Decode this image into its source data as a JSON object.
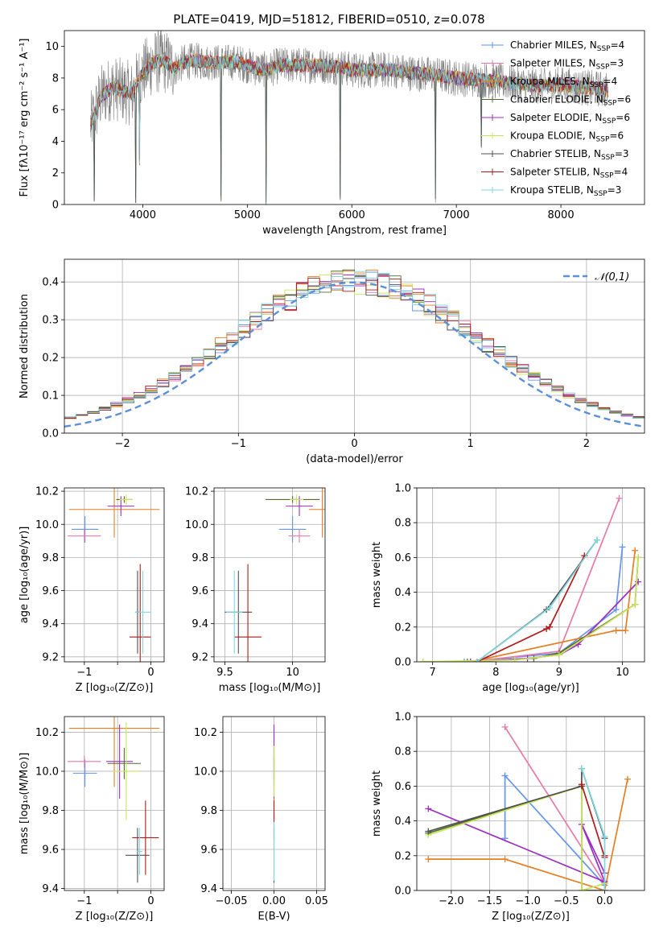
{
  "chart_data": [
    {
      "id": "spectrum",
      "type": "line",
      "title": "PLATE=0419, MJD=51812, FIBERID=0510, z=0.078",
      "xlabel": "wavelength [Angstrom, rest frame]",
      "ylabel": "Flux [fλ10⁻¹⁷ erg cm⁻² s⁻¹ A⁻¹]",
      "xlim": [
        3250,
        8800
      ],
      "ylim": [
        0,
        11
      ],
      "xticks": [
        4000,
        5000,
        6000,
        7000,
        8000
      ],
      "yticks": [
        0,
        2,
        4,
        6,
        8,
        10
      ],
      "grid": false,
      "legend_position": "right",
      "observed_color": "#808080",
      "observed_profile": [
        [
          3500,
          5.0
        ],
        [
          3600,
          6.8
        ],
        [
          3700,
          7.4
        ],
        [
          3800,
          7.2
        ],
        [
          3900,
          7.0
        ],
        [
          3950,
          7.8
        ],
        [
          4000,
          8.3
        ],
        [
          4100,
          9.0
        ],
        [
          4200,
          9.1
        ],
        [
          4300,
          8.6
        ],
        [
          4400,
          9.0
        ],
        [
          4500,
          9.1
        ],
        [
          4600,
          9.0
        ],
        [
          4700,
          9.0
        ],
        [
          4800,
          9.0
        ],
        [
          4900,
          9.0
        ],
        [
          5000,
          8.8
        ],
        [
          5100,
          8.6
        ],
        [
          5200,
          8.5
        ],
        [
          5300,
          8.8
        ],
        [
          5500,
          8.8
        ],
        [
          5700,
          8.8
        ],
        [
          5900,
          8.7
        ],
        [
          6000,
          8.5
        ],
        [
          6200,
          8.5
        ],
        [
          6400,
          8.5
        ],
        [
          6600,
          8.3
        ],
        [
          6800,
          8.2
        ],
        [
          7000,
          8.0
        ],
        [
          7200,
          7.9
        ],
        [
          7400,
          7.8
        ],
        [
          7600,
          7.6
        ],
        [
          7800,
          7.5
        ],
        [
          8000,
          7.6
        ],
        [
          8200,
          7.4
        ],
        [
          8400,
          7.3
        ],
        [
          8450,
          7.2
        ]
      ],
      "absorption_lines": [
        [
          3535,
          0.2
        ],
        [
          3934,
          0.1
        ],
        [
          3969,
          2.5
        ],
        [
          4750,
          0.2
        ],
        [
          5180,
          0.0
        ],
        [
          5890,
          0.3
        ],
        [
          6800,
          0.1
        ],
        [
          7240,
          3.6
        ]
      ],
      "legend": [
        {
          "label": "Chabrier MILES, N",
          "sub": "SSP",
          "value": "=4",
          "color": "#6495ed"
        },
        {
          "label": "Salpeter MILES, N",
          "sub": "SSP",
          "value": "=3",
          "color": "#e87aa8"
        },
        {
          "label": "Kroupa MILES, N",
          "sub": "SSP",
          "value": "=4",
          "color": "#e67e22"
        },
        {
          "label": "Chabrier ELODIE, N",
          "sub": "SSP",
          "value": "=6",
          "color": "#556b2f"
        },
        {
          "label": "Salpeter ELODIE, N",
          "sub": "SSP",
          "value": "=6",
          "color": "#9b30c0"
        },
        {
          "label": "Kroupa ELODIE, N",
          "sub": "SSP",
          "value": "=6",
          "color": "#c7e55a"
        },
        {
          "label": "Chabrier STELIB, N",
          "sub": "SSP",
          "value": "=3",
          "color": "#505050"
        },
        {
          "label": "Salpeter STELIB, N",
          "sub": "SSP",
          "value": "=4",
          "color": "#b21a1a"
        },
        {
          "label": "Kroupa STELIB, N",
          "sub": "SSP",
          "value": "=3",
          "color": "#7fd8e0"
        }
      ]
    },
    {
      "id": "residuals",
      "type": "step-histogram",
      "xlabel": "(data-model)/error",
      "ylabel": "Normed distribution",
      "xlim": [
        -2.5,
        2.5
      ],
      "ylim": [
        0,
        0.46
      ],
      "xticks": [
        -2,
        -1,
        0,
        1,
        2
      ],
      "yticks": [
        0.0,
        0.1,
        0.2,
        0.3,
        0.4
      ],
      "grid": true,
      "legend_position": "top-right",
      "reference_curve": {
        "label": "𝒩(0,1)",
        "mean": 0,
        "sigma": 1,
        "color": "#5b8fd9",
        "style": "dashed"
      },
      "bin_edges_range": [
        -2.5,
        2.5
      ],
      "n_bins": 50
    },
    {
      "id": "z-age",
      "type": "errorbar",
      "xlabel": "Z [log₁₀(Z/Z⊙)]",
      "ylabel": "age  [log₁₀(age/yr)]",
      "xlim": [
        -1.3,
        0.2
      ],
      "ylim": [
        9.17,
        10.22
      ],
      "xticks": [
        -1,
        -0.5,
        0
      ],
      "xtick_labels": [
        "−1",
        "",
        "0"
      ],
      "yticks": [
        9.2,
        9.4,
        9.6,
        9.8,
        10.0,
        10.2
      ],
      "grid": true,
      "points": [
        {
          "series": "Chabrier MILES",
          "x": -0.99,
          "y": 9.97,
          "xerr": 0.2,
          "yerr": 0.08
        },
        {
          "series": "Salpeter MILES",
          "x": -1.0,
          "y": 9.93,
          "xerr": 0.25,
          "yerr": 0.04
        },
        {
          "series": "Kroupa MILES",
          "x": -0.55,
          "y": 10.09,
          "xerr": 0.68,
          "yerr": 0.17
        },
        {
          "series": "Chabrier ELODIE",
          "x": -0.4,
          "y": 10.15,
          "xerr": 0.12,
          "yerr": 0.02
        },
        {
          "series": "Salpeter ELODIE",
          "x": -0.45,
          "y": 10.11,
          "xerr": 0.2,
          "yerr": 0.06
        },
        {
          "series": "Kroupa ELODIE",
          "x": -0.37,
          "y": 10.15,
          "xerr": 0.1,
          "yerr": 0.03
        },
        {
          "series": "Chabrier STELIB",
          "x": -0.2,
          "y": 9.47,
          "xerr": 0.03,
          "yerr": 0.25
        },
        {
          "series": "Salpeter STELIB",
          "x": -0.16,
          "y": 9.32,
          "xerr": 0.16,
          "yerr": 0.44
        },
        {
          "series": "Kroupa STELIB",
          "x": -0.12,
          "y": 9.47,
          "xerr": 0.12,
          "yerr": 0.25
        }
      ]
    },
    {
      "id": "mass-age",
      "type": "errorbar",
      "xlabel": "mass [log₁₀(M/M⊙)]",
      "xlim": [
        9.42,
        10.24
      ],
      "ylim": [
        9.17,
        10.22
      ],
      "xticks": [
        9.5,
        10.0
      ],
      "yticks": [
        9.2,
        9.4,
        9.6,
        9.8,
        10.0,
        10.2
      ],
      "grid": true,
      "points": [
        {
          "series": "Chabrier MILES",
          "x": 10.0,
          "y": 9.97,
          "xerr": 0.1,
          "yerr": 0.08
        },
        {
          "series": "Salpeter MILES",
          "x": 10.05,
          "y": 9.93,
          "xerr": 0.08,
          "yerr": 0.04
        },
        {
          "series": "Kroupa MILES",
          "x": 10.22,
          "y": 10.09,
          "xerr": 0.1,
          "yerr": 0.17
        },
        {
          "series": "Chabrier ELODIE",
          "x": 10.0,
          "y": 10.15,
          "xerr": 0.2,
          "yerr": 0.02
        },
        {
          "series": "Salpeter ELODIE",
          "x": 10.05,
          "y": 10.11,
          "xerr": 0.1,
          "yerr": 0.06
        },
        {
          "series": "Kroupa ELODIE",
          "x": 10.03,
          "y": 10.15,
          "xerr": 0.05,
          "yerr": 0.03
        },
        {
          "series": "Chabrier STELIB",
          "x": 9.6,
          "y": 9.47,
          "xerr": 0.1,
          "yerr": 0.25
        },
        {
          "series": "Salpeter STELIB",
          "x": 9.67,
          "y": 9.32,
          "xerr": 0.1,
          "yerr": 0.44
        },
        {
          "series": "Kroupa STELIB",
          "x": 9.57,
          "y": 9.47,
          "xerr": 0.06,
          "yerr": 0.25
        }
      ]
    },
    {
      "id": "age-weight",
      "type": "line",
      "xlabel": "age  [log₁₀(age/yr)]",
      "ylabel": "mass weight",
      "xlim": [
        6.75,
        10.35
      ],
      "ylim": [
        0,
        1.0
      ],
      "xticks": [
        7,
        8,
        9,
        10
      ],
      "yticks": [
        0.0,
        0.2,
        0.4,
        0.6,
        0.8,
        1.0
      ],
      "grid": true,
      "series": [
        {
          "name": "Chabrier MILES",
          "points": [
            [
              7.5,
              0.0
            ],
            [
              9.0,
              0.05
            ],
            [
              9.9,
              0.3
            ],
            [
              10.0,
              0.66
            ]
          ]
        },
        {
          "name": "Salpeter MILES",
          "points": [
            [
              7.6,
              0.0
            ],
            [
              9.0,
              0.06
            ],
            [
              9.95,
              0.94
            ]
          ]
        },
        {
          "name": "Kroupa MILES",
          "points": [
            [
              6.85,
              0.0
            ],
            [
              7.6,
              0.0
            ],
            [
              9.9,
              0.18
            ],
            [
              10.05,
              0.18
            ],
            [
              10.2,
              0.64
            ]
          ]
        },
        {
          "name": "Chabrier ELODIE",
          "points": [
            [
              7.55,
              0.0
            ],
            [
              8.6,
              0.02
            ],
            [
              9.0,
              0.05
            ],
            [
              10.2,
              0.33
            ],
            [
              10.25,
              0.6
            ]
          ]
        },
        {
          "name": "Salpeter ELODIE",
          "points": [
            [
              7.6,
              0.0
            ],
            [
              8.5,
              0.02
            ],
            [
              9.0,
              0.04
            ],
            [
              9.3,
              0.1
            ],
            [
              10.25,
              0.46
            ]
          ]
        },
        {
          "name": "Kroupa ELODIE",
          "points": [
            [
              6.85,
              0.0
            ],
            [
              8.3,
              0.01
            ],
            [
              9.0,
              0.04
            ],
            [
              10.2,
              0.33
            ],
            [
              10.25,
              0.6
            ]
          ]
        },
        {
          "name": "Chabrier STELIB",
          "points": [
            [
              7.7,
              0.0
            ],
            [
              8.8,
              0.3
            ],
            [
              9.6,
              0.7
            ]
          ]
        },
        {
          "name": "Salpeter STELIB",
          "points": [
            [
              7.7,
              0.0
            ],
            [
              8.8,
              0.19
            ],
            [
              8.85,
              0.2
            ],
            [
              9.4,
              0.61
            ]
          ]
        },
        {
          "name": "Kroupa STELIB",
          "points": [
            [
              7.7,
              0.0
            ],
            [
              8.85,
              0.31
            ],
            [
              9.6,
              0.7
            ]
          ]
        }
      ]
    },
    {
      "id": "z-mass",
      "type": "errorbar",
      "xlabel": "Z [log₁₀(Z/Z⊙)]",
      "ylabel": "mass [log₁₀(M/M⊙)]",
      "xlim": [
        -1.3,
        0.2
      ],
      "ylim": [
        9.39,
        10.28
      ],
      "xticks": [
        -1,
        -0.5,
        0
      ],
      "xtick_labels": [
        "−1",
        "",
        "0"
      ],
      "yticks": [
        9.4,
        9.6,
        9.8,
        10.0,
        10.2
      ],
      "grid": true,
      "points": [
        {
          "series": "Chabrier MILES",
          "x": -0.99,
          "y": 9.99,
          "xerr": 0.18,
          "yerr": 0.07
        },
        {
          "series": "Salpeter MILES",
          "x": -1.0,
          "y": 10.05,
          "xerr": 0.25,
          "yerr": 0.03
        },
        {
          "series": "Kroupa MILES",
          "x": -0.55,
          "y": 10.22,
          "xerr": 0.68,
          "yerr": 0.3
        },
        {
          "series": "Chabrier ELODIE",
          "x": -0.4,
          "y": 10.04,
          "xerr": 0.25,
          "yerr": 0.08
        },
        {
          "series": "Salpeter ELODIE",
          "x": -0.47,
          "y": 10.05,
          "xerr": 0.2,
          "yerr": 0.19
        },
        {
          "series": "Kroupa ELODIE",
          "x": -0.37,
          "y": 10.0,
          "xerr": 0.2,
          "yerr": 0.25
        },
        {
          "series": "Chabrier STELIB",
          "x": -0.2,
          "y": 9.57,
          "xerr": 0.18,
          "yerr": 0.14
        },
        {
          "series": "Salpeter STELIB",
          "x": -0.08,
          "y": 9.66,
          "xerr": 0.2,
          "yerr": 0.19
        },
        {
          "series": "Kroupa STELIB",
          "x": -0.17,
          "y": 9.59,
          "xerr": 0.04,
          "yerr": 0.12
        }
      ]
    },
    {
      "id": "ebv-mass",
      "type": "errorbar",
      "xlabel": "E(B-V)",
      "xlim": [
        -0.06,
        0.06
      ],
      "ylim": [
        9.39,
        10.28
      ],
      "xticks": [
        -0.05,
        0.0,
        0.05
      ],
      "xtick_labels": [
        "−0.05",
        "0.00",
        "0.05"
      ],
      "yticks": [
        9.4,
        9.6,
        9.8,
        10.0,
        10.2
      ],
      "grid": true,
      "points": [
        {
          "series": "Chabrier MILES",
          "x": 0,
          "y": 9.99,
          "xerr": 0,
          "yerr": 0.07
        },
        {
          "series": "Salpeter MILES",
          "x": 0,
          "y": 10.05,
          "xerr": 0,
          "yerr": 0.03
        },
        {
          "series": "Kroupa MILES",
          "x": 0,
          "y": 10.0,
          "xerr": 0,
          "yerr": 0.2
        },
        {
          "series": "Chabrier ELODIE",
          "x": 0,
          "y": 10.04,
          "xerr": 0,
          "yerr": 0.08
        },
        {
          "series": "Salpeter ELODIE",
          "x": 0,
          "y": 10.05,
          "xerr": 0,
          "yerr": 0.19
        },
        {
          "series": "Kroupa ELODIE",
          "x": 0,
          "y": 10.0,
          "xerr": 0,
          "yerr": 0.13
        },
        {
          "series": "Chabrier STELIB",
          "x": 0,
          "y": 9.57,
          "xerr": 0,
          "yerr": 0.14
        },
        {
          "series": "Salpeter STELIB",
          "x": 0,
          "y": 9.75,
          "xerr": 0,
          "yerr": 0.1
        },
        {
          "series": "Kroupa STELIB",
          "x": 0,
          "y": 9.59,
          "xerr": 0,
          "yerr": 0.15
        }
      ]
    },
    {
      "id": "z-weight",
      "type": "line",
      "xlabel": "Z [log₁₀(Z/Z⊙)]",
      "ylabel": "mass weight",
      "xlim": [
        -2.45,
        0.52
      ],
      "ylim": [
        0,
        1.0
      ],
      "xticks": [
        -2.0,
        -1.5,
        -1.0,
        -0.5,
        0.0
      ],
      "xtick_labels": [
        "−2.0",
        "−1.5",
        "−1.0",
        "−0.5",
        "0.0"
      ],
      "yticks": [
        0.0,
        0.2,
        0.4,
        0.6,
        0.8,
        1.0
      ],
      "grid": true,
      "series": [
        {
          "name": "Chabrier MILES",
          "points": [
            [
              -1.3,
              0.3
            ],
            [
              -1.3,
              0.66
            ],
            [
              0.0,
              0.03
            ],
            [
              0.0,
              0.0
            ]
          ]
        },
        {
          "name": "Salpeter MILES",
          "points": [
            [
              -1.3,
              0.94
            ],
            [
              0.0,
              0.04
            ]
          ]
        },
        {
          "name": "Kroupa MILES",
          "points": [
            [
              -2.3,
              0.18
            ],
            [
              -1.3,
              0.18
            ],
            [
              0.0,
              0.0
            ],
            [
              0.3,
              0.64
            ]
          ]
        },
        {
          "name": "Chabrier ELODIE",
          "points": [
            [
              -2.3,
              0.33
            ],
            [
              -0.3,
              0.6
            ],
            [
              -0.3,
              0.0
            ],
            [
              0.0,
              0.0
            ]
          ]
        },
        {
          "name": "Salpeter ELODIE",
          "points": [
            [
              -2.3,
              0.47
            ],
            [
              0.0,
              0.05
            ],
            [
              -0.3,
              0.38
            ],
            [
              0.0,
              0.1
            ]
          ]
        },
        {
          "name": "Kroupa ELODIE",
          "points": [
            [
              -2.3,
              0.32
            ],
            [
              -0.3,
              0.6
            ],
            [
              -0.3,
              0.0
            ],
            [
              0.0,
              0.04
            ]
          ]
        },
        {
          "name": "Chabrier STELIB",
          "points": [
            [
              -2.3,
              0.34
            ],
            [
              -0.3,
              0.6
            ],
            [
              -0.3,
              0.7
            ],
            [
              0.0,
              0.3
            ]
          ]
        },
        {
          "name": "Salpeter STELIB",
          "points": [
            [
              -0.3,
              0.61
            ],
            [
              0.0,
              0.19
            ],
            [
              0.0,
              0.2
            ]
          ]
        },
        {
          "name": "Kroupa STELIB",
          "points": [
            [
              -0.3,
              0.7
            ],
            [
              0.0,
              0.31
            ],
            [
              0.0,
              0.0
            ]
          ]
        }
      ]
    }
  ]
}
